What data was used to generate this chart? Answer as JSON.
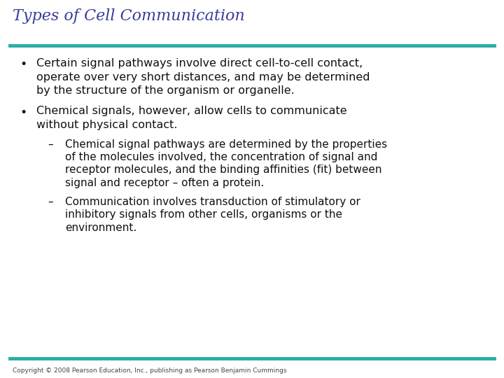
{
  "title": "Types of Cell Communication",
  "title_color": "#3b3b9b",
  "title_fontsize": 16,
  "title_style": "italic",
  "title_font": "serif",
  "rule_color": "#2aada5",
  "rule_lw": 3.5,
  "body_font": "DejaVu Sans",
  "body_fontsize": 11.5,
  "body_color": "#111111",
  "sub_fontsize": 11.0,
  "copyright_text": "Copyright © 2008 Pearson Education, Inc., publishing as Pearson Benjamin Cummings",
  "copyright_fontsize": 6.5,
  "copyright_color": "#444444",
  "content": [
    {
      "type": "bullet1",
      "lines": [
        "Certain signal pathways involve direct cell-to-cell contact,",
        "operate over very short distances, and may be determined",
        "by the structure of the organism or organelle."
      ]
    },
    {
      "type": "spacer",
      "size": 10
    },
    {
      "type": "bullet1",
      "lines": [
        "Chemical signals, however, allow cells to communicate",
        "without physical contact."
      ]
    },
    {
      "type": "spacer",
      "size": 8
    },
    {
      "type": "bullet2",
      "lines": [
        "Chemical signal pathways are determined by the properties",
        "of the molecules involved, the concentration of signal and",
        "receptor molecules, and the binding affinities (fit) between",
        "signal and receptor – often a protein."
      ]
    },
    {
      "type": "spacer",
      "size": 8
    },
    {
      "type": "bullet2",
      "lines": [
        "Communication involves transduction of stimulatory or",
        "inhibitory signals from other cells, organisms or the",
        "environment."
      ]
    }
  ]
}
